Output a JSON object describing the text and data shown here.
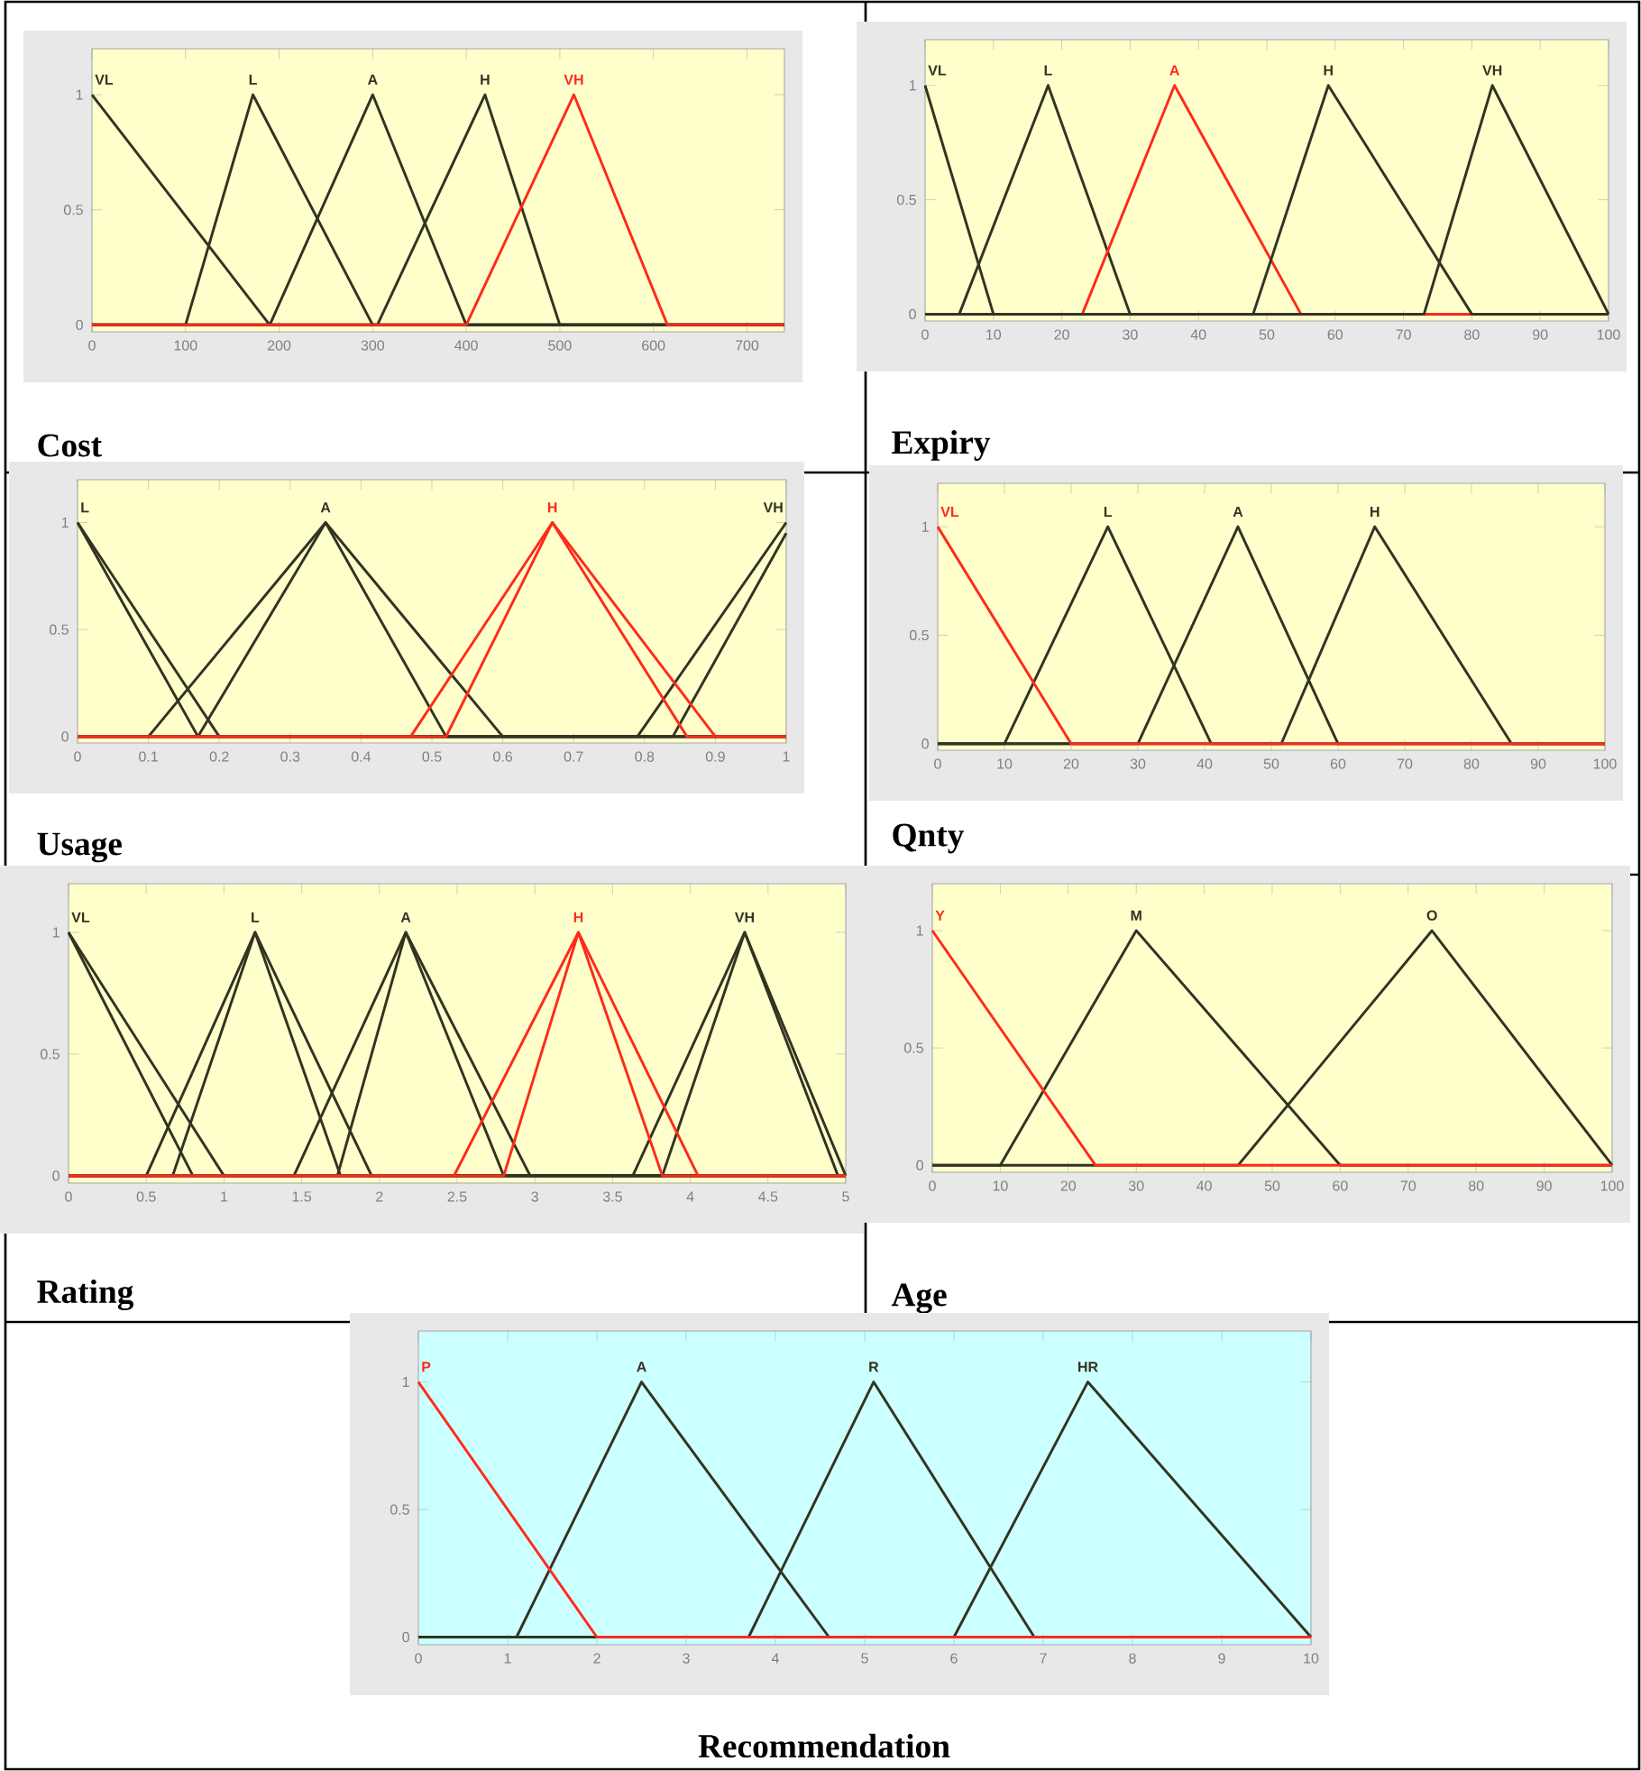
{
  "chart_data": [
    {
      "type": "line",
      "xlabel": "Cost",
      "xlim": [
        0,
        740
      ],
      "xticks": [
        0,
        100,
        200,
        300,
        400,
        500,
        600,
        700
      ],
      "ylim": [
        -0.03,
        1.2
      ],
      "yticks": [
        0,
        0.5,
        1
      ],
      "series": [
        {
          "name": "VL",
          "color": "#333322",
          "x": [
            0,
            190,
            740
          ],
          "values": [
            1,
            0,
            0
          ]
        },
        {
          "name": "L",
          "color": "#333322",
          "x": [
            0,
            100,
            172,
            300,
            740
          ],
          "values": [
            0,
            0,
            1,
            0,
            0
          ]
        },
        {
          "name": "A",
          "color": "#333322",
          "x": [
            0,
            190,
            300,
            400,
            740
          ],
          "values": [
            0,
            0,
            1,
            0,
            0
          ]
        },
        {
          "name": "H",
          "color": "#333322",
          "x": [
            0,
            305,
            420,
            500,
            740
          ],
          "values": [
            0,
            0,
            1,
            0,
            0
          ]
        },
        {
          "name": "VH",
          "color": "#ff2a1a",
          "x": [
            0,
            400,
            515,
            615,
            740
          ],
          "values": [
            0,
            0,
            1,
            0,
            0
          ]
        }
      ]
    },
    {
      "type": "line",
      "xlabel": "Expiry",
      "xlim": [
        0,
        100
      ],
      "xticks": [
        0,
        10,
        20,
        30,
        40,
        50,
        60,
        70,
        80,
        90,
        100
      ],
      "ylim": [
        -0.03,
        1.2
      ],
      "yticks": [
        0,
        0.5,
        1
      ],
      "series": [
        {
          "name": "VL",
          "color": "#333322",
          "x": [
            0,
            10,
            100
          ],
          "values": [
            1,
            0,
            0
          ]
        },
        {
          "name": "L",
          "color": "#333322",
          "x": [
            0,
            5,
            18,
            30,
            100
          ],
          "values": [
            0,
            0,
            1,
            0,
            0
          ]
        },
        {
          "name": "A",
          "color": "#ff2a1a",
          "x": [
            0,
            23,
            36.5,
            55,
            100
          ],
          "values": [
            0,
            0,
            1,
            0,
            0
          ]
        },
        {
          "name": "H",
          "color": "#333322",
          "x": [
            0,
            48,
            59,
            80,
            100
          ],
          "values": [
            0,
            0,
            1,
            0,
            0
          ]
        },
        {
          "name": "VH",
          "color": "#333322",
          "x": [
            0,
            73,
            83,
            100
          ],
          "values": [
            0,
            0,
            1,
            0
          ]
        }
      ]
    },
    {
      "type": "line",
      "xlabel": "Usage",
      "xlim": [
        0,
        1
      ],
      "xticks": [
        0,
        0.1,
        0.2,
        0.3,
        0.4,
        0.5,
        0.6,
        0.7,
        0.8,
        0.9,
        1
      ],
      "ylim": [
        -0.03,
        1.2
      ],
      "yticks": [
        0,
        0.5,
        1
      ],
      "series": [
        {
          "name": "L",
          "color": "#333322",
          "x": [
            0,
            0.17,
            1
          ],
          "values": [
            1,
            0,
            0
          ]
        },
        {
          "color": "#333322",
          "x": [
            0,
            0.2,
            1
          ],
          "values": [
            1,
            0,
            0
          ]
        },
        {
          "name": "A",
          "color": "#333322",
          "x": [
            0,
            0.1,
            0.35,
            0.6,
            1
          ],
          "values": [
            0,
            0,
            1,
            0,
            0
          ]
        },
        {
          "color": "#333322",
          "x": [
            0,
            0.17,
            0.35,
            0.52,
            1
          ],
          "values": [
            0,
            0,
            1,
            0,
            0
          ]
        },
        {
          "name": "VH",
          "color": "#333322",
          "x": [
            0,
            0.79,
            1
          ],
          "values": [
            0,
            0,
            1
          ]
        },
        {
          "color": "#333322",
          "x": [
            0,
            0.84,
            1
          ],
          "values": [
            0,
            0,
            0.95
          ]
        },
        {
          "name": "H",
          "color": "#ff2a1a",
          "x": [
            0,
            0.47,
            0.67,
            0.9,
            1
          ],
          "values": [
            0,
            0,
            1,
            0,
            0
          ]
        },
        {
          "color": "#ff2a1a",
          "x": [
            0,
            0.52,
            0.67,
            0.86,
            1
          ],
          "values": [
            0,
            0,
            1,
            0,
            0
          ]
        }
      ]
    },
    {
      "type": "line",
      "xlabel": "Qnty",
      "xlim": [
        0,
        100
      ],
      "xticks": [
        0,
        10,
        20,
        30,
        40,
        50,
        60,
        70,
        80,
        90,
        100
      ],
      "ylim": [
        -0.03,
        1.2
      ],
      "yticks": [
        0,
        0.5,
        1
      ],
      "series": [
        {
          "name": "L",
          "color": "#333322",
          "x": [
            0,
            10,
            25.5,
            41,
            100
          ],
          "values": [
            0,
            0,
            1,
            0,
            0
          ]
        },
        {
          "name": "A",
          "color": "#333322",
          "x": [
            0,
            30,
            45,
            60,
            100
          ],
          "values": [
            0,
            0,
            1,
            0,
            0
          ]
        },
        {
          "name": "H",
          "color": "#333322",
          "x": [
            0,
            51.5,
            65.5,
            86,
            100
          ],
          "values": [
            0,
            0,
            1,
            0,
            0
          ]
        },
        {
          "name": "VL",
          "color": "#ff2a1a",
          "x": [
            0,
            20,
            100
          ],
          "values": [
            1,
            0,
            0
          ]
        }
      ]
    },
    {
      "type": "line",
      "xlabel": "Rating",
      "xlim": [
        0,
        5
      ],
      "xticks": [
        0,
        0.5,
        1,
        1.5,
        2,
        2.5,
        3,
        3.5,
        4,
        4.5,
        5
      ],
      "ylim": [
        -0.03,
        1.2
      ],
      "yticks": [
        0,
        0.5,
        1
      ],
      "series": [
        {
          "name": "VL",
          "color": "#333322",
          "x": [
            0,
            0.8,
            5
          ],
          "values": [
            1,
            0,
            0
          ]
        },
        {
          "color": "#333322",
          "x": [
            0,
            1,
            5
          ],
          "values": [
            1,
            0,
            0
          ]
        },
        {
          "name": "L",
          "color": "#333322",
          "x": [
            0,
            0.5,
            1.2,
            1.75,
            5
          ],
          "values": [
            0,
            0,
            1,
            0,
            0
          ]
        },
        {
          "color": "#333322",
          "x": [
            0,
            0.67,
            1.2,
            1.95,
            5
          ],
          "values": [
            0,
            0,
            1,
            0,
            0
          ]
        },
        {
          "name": "A",
          "color": "#333322",
          "x": [
            0,
            1.45,
            2.17,
            2.8,
            5
          ],
          "values": [
            0,
            0,
            1,
            0,
            0
          ]
        },
        {
          "color": "#333322",
          "x": [
            0,
            1.73,
            2.17,
            2.97,
            5
          ],
          "values": [
            0,
            0,
            1,
            0,
            0
          ]
        },
        {
          "name": "VH",
          "color": "#333322",
          "x": [
            0,
            3.63,
            4.35,
            5
          ],
          "values": [
            0,
            0,
            1,
            0
          ]
        },
        {
          "color": "#333322",
          "x": [
            0,
            3.82,
            4.35,
            4.95,
            5
          ],
          "values": [
            0,
            0,
            1,
            0,
            0
          ]
        },
        {
          "name": "H",
          "color": "#ff2a1a",
          "x": [
            0,
            2.48,
            3.28,
            4.05,
            5
          ],
          "values": [
            0,
            0,
            1,
            0,
            0
          ]
        },
        {
          "color": "#ff2a1a",
          "x": [
            0,
            2.8,
            3.28,
            3.82,
            5
          ],
          "values": [
            0,
            0,
            1,
            0,
            0
          ]
        }
      ]
    },
    {
      "type": "line",
      "xlabel": "Age",
      "xlim": [
        0,
        100
      ],
      "xticks": [
        0,
        10,
        20,
        30,
        40,
        50,
        60,
        70,
        80,
        90,
        100
      ],
      "ylim": [
        -0.03,
        1.2
      ],
      "yticks": [
        0,
        0.5,
        1
      ],
      "series": [
        {
          "name": "M",
          "color": "#333322",
          "x": [
            0,
            10,
            30,
            60,
            100
          ],
          "values": [
            0,
            0,
            1,
            0,
            0
          ]
        },
        {
          "name": "O",
          "color": "#333322",
          "x": [
            0,
            45,
            73.5,
            100
          ],
          "values": [
            0,
            0,
            1,
            0
          ]
        },
        {
          "name": "Y",
          "color": "#ff2a1a",
          "x": [
            0,
            24,
            100
          ],
          "values": [
            1,
            0,
            0
          ]
        }
      ]
    },
    {
      "type": "line",
      "xlabel": "Recommendation",
      "xlim": [
        0,
        10
      ],
      "xticks": [
        0,
        1,
        2,
        3,
        4,
        5,
        6,
        7,
        8,
        9,
        10
      ],
      "ylim": [
        -0.03,
        1.2
      ],
      "yticks": [
        0,
        0.5,
        1
      ],
      "series": [
        {
          "name": "A",
          "color": "#333322",
          "x": [
            0,
            1.1,
            2.5,
            4.6,
            10
          ],
          "values": [
            0,
            0,
            1,
            0,
            0
          ]
        },
        {
          "name": "R",
          "color": "#333322",
          "x": [
            0,
            3.7,
            5.1,
            6.9,
            10
          ],
          "values": [
            0,
            0,
            1,
            0,
            0
          ]
        },
        {
          "name": "HR",
          "color": "#333322",
          "x": [
            0,
            6,
            7.5,
            10
          ],
          "values": [
            0,
            0,
            1,
            0
          ]
        },
        {
          "name": "P",
          "color": "#ff2a1a",
          "x": [
            0,
            2,
            10
          ],
          "values": [
            1,
            0,
            0
          ]
        }
      ]
    }
  ]
}
